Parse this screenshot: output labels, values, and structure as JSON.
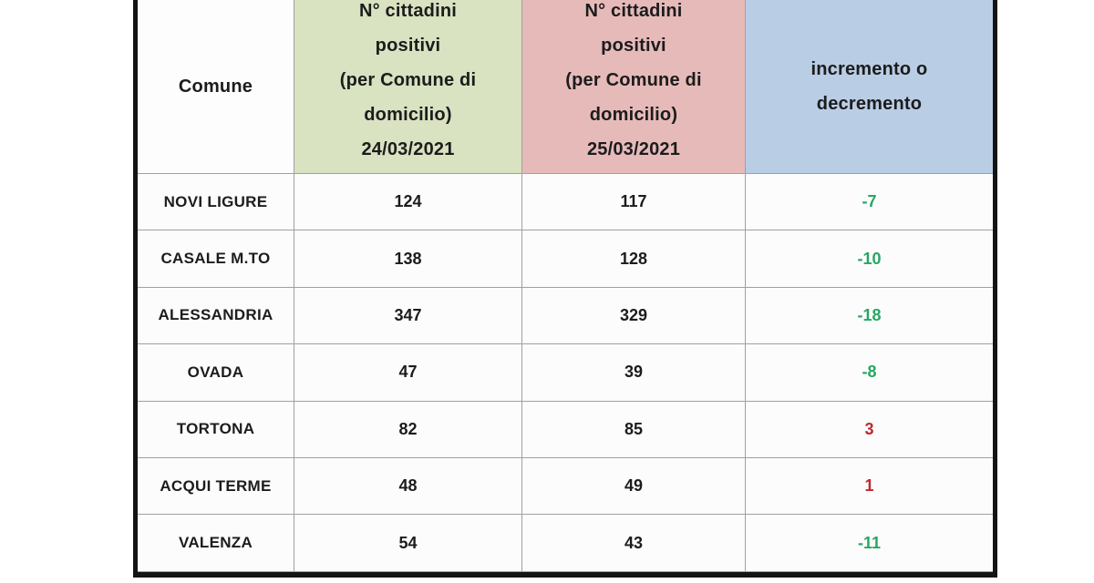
{
  "colors": {
    "header_green": "#d9e2c1",
    "header_pink": "#e7baba",
    "header_blue": "#b9cde5",
    "decrease_text": "#2aa664",
    "increase_text": "#c1282e",
    "grid_line": "#a0a0a0",
    "outer_border": "#141414"
  },
  "table": {
    "header": {
      "comune": "Comune",
      "col_24_03": "N° cittadini\npositivi\n(per Comune di\ndomicilio)\n24/03/2021",
      "col_25_03": "N° cittadini\npositivi\n(per Comune di\ndomicilio)\n25/03/2021",
      "delta": "incremento o\ndecremento"
    },
    "rows": [
      {
        "comune": "NOVI LIGURE",
        "positives_24": "124",
        "positives_25": "117",
        "delta": "-7"
      },
      {
        "comune": "CASALE M.TO",
        "positives_24": "138",
        "positives_25": "128",
        "delta": "-10"
      },
      {
        "comune": "ALESSANDRIA",
        "positives_24": "347",
        "positives_25": "329",
        "delta": "-18"
      },
      {
        "comune": "OVADA",
        "positives_24": "47",
        "positives_25": "39",
        "delta": "-8"
      },
      {
        "comune": "TORTONA",
        "positives_24": "82",
        "positives_25": "85",
        "delta": "3"
      },
      {
        "comune": "ACQUI TERME",
        "positives_24": "48",
        "positives_25": "49",
        "delta": "1"
      },
      {
        "comune": "VALENZA",
        "positives_24": "54",
        "positives_25": "43",
        "delta": "-11"
      }
    ]
  },
  "chart_data": {
    "type": "table",
    "title": "N° cittadini positivi per Comune di domicilio - 24/03/2021 vs 25/03/2021",
    "columns": [
      "Comune",
      "N° cittadini positivi (per Comune di domicilio) 24/03/2021",
      "N° cittadini positivi (per Comune di domicilio) 25/03/2021",
      "incremento o decremento"
    ],
    "rows": [
      [
        "NOVI LIGURE",
        124,
        117,
        -7
      ],
      [
        "CASALE M.TO",
        138,
        128,
        -10
      ],
      [
        "ALESSANDRIA",
        347,
        329,
        -18
      ],
      [
        "OVADA",
        47,
        39,
        -8
      ],
      [
        "TORTONA",
        82,
        85,
        3
      ],
      [
        "ACQUI TERME",
        48,
        49,
        1
      ],
      [
        "VALENZA",
        54,
        43,
        -11
      ]
    ],
    "notes": "Negative deltas rendered in green, positive deltas in red"
  }
}
